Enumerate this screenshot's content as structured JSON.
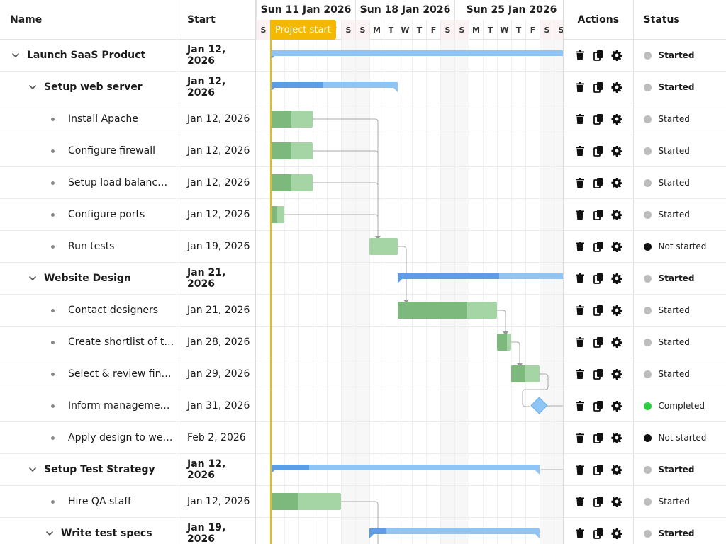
{
  "columns": {
    "name": "Name",
    "start": "Start",
    "actions": "Actions",
    "status": "Status"
  },
  "timeline": {
    "weeks": [
      "Sun 11 Jan 2026",
      "Sun 18 Jan 2026",
      "Sun 25 Jan 2026"
    ],
    "day_letters": [
      "S",
      "M",
      "T",
      "W",
      "T",
      "F",
      "S",
      "S",
      "M",
      "T",
      "W",
      "T",
      "F",
      "S",
      "S",
      "M",
      "T",
      "W",
      "T",
      "F",
      "S",
      "S"
    ],
    "today_label": "Project start"
  },
  "colors": {
    "today": "#f5b800",
    "completed": "#2ecc40",
    "not_started": "#111111",
    "started": "#bdbdbd"
  },
  "rows": [
    {
      "name": "Launch SaaS Product",
      "start": "Jan 12, 2026",
      "level": 0,
      "type": "parent",
      "status": "Started"
    },
    {
      "name": "Setup web server",
      "start": "Jan 12, 2026",
      "level": 1,
      "type": "parent",
      "status": "Started"
    },
    {
      "name": "Install Apache",
      "start": "Jan 12, 2026",
      "level": 2,
      "type": "task",
      "status": "Started"
    },
    {
      "name": "Configure firewall",
      "start": "Jan 12, 2026",
      "level": 2,
      "type": "task",
      "status": "Started"
    },
    {
      "name": "Setup load balanc…",
      "start": "Jan 12, 2026",
      "level": 2,
      "type": "task",
      "status": "Started"
    },
    {
      "name": "Configure ports",
      "start": "Jan 12, 2026",
      "level": 2,
      "type": "task",
      "status": "Started"
    },
    {
      "name": "Run tests",
      "start": "Jan 19, 2026",
      "level": 2,
      "type": "task",
      "status": "Not started"
    },
    {
      "name": "Website Design",
      "start": "Jan 21, 2026",
      "level": 1,
      "type": "parent",
      "status": "Started"
    },
    {
      "name": "Contact designers",
      "start": "Jan 21, 2026",
      "level": 2,
      "type": "task",
      "status": "Started"
    },
    {
      "name": "Create shortlist of t…",
      "start": "Jan 28, 2026",
      "level": 2,
      "type": "task",
      "status": "Started"
    },
    {
      "name": "Select & review fin…",
      "start": "Jan 29, 2026",
      "level": 2,
      "type": "task",
      "status": "Started"
    },
    {
      "name": "Inform manageme…",
      "start": "Jan 31, 2026",
      "level": 2,
      "type": "task",
      "status": "Completed"
    },
    {
      "name": "Apply design to we…",
      "start": "Feb 2, 2026",
      "level": 2,
      "type": "task",
      "status": "Not started"
    },
    {
      "name": "Setup Test Strategy",
      "start": "Jan 12, 2026",
      "level": 1,
      "type": "parent",
      "status": "Started"
    },
    {
      "name": "Hire QA staff",
      "start": "Jan 12, 2026",
      "level": 2,
      "type": "task",
      "status": "Started"
    },
    {
      "name": "Write test specs",
      "start": "Jan 19, 2026",
      "level": 2,
      "type": "parent",
      "status": "Started"
    }
  ]
}
